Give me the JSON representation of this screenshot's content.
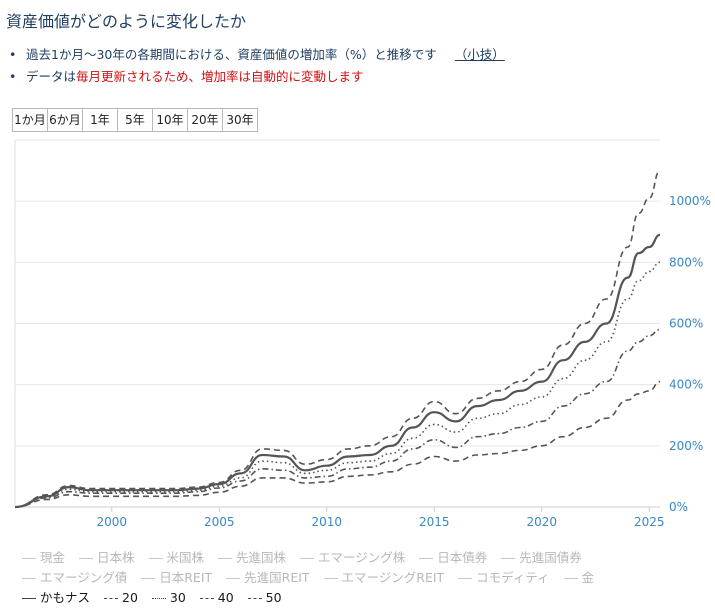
{
  "title": "資産価値がどのように変化したか",
  "bullets": {
    "line1": "過去1か月〜30年の各期間における、資産価値の増加率（%）と推移です",
    "line1_link": "（小技）",
    "line2_part1": "データは",
    "line2_part2": "毎月更新されるため、増加率は自動的に変動します"
  },
  "tabs": [
    "1か月",
    "6か月",
    "1年",
    "5年",
    "10年",
    "20年",
    "30年"
  ],
  "legend": {
    "row1": [
      "現金",
      "日本株",
      "米国株",
      "先進国株",
      "エマージング株",
      "日本債券",
      "先進国債券"
    ],
    "row2": [
      "エマージング債",
      "日本REIT",
      "先進国REIT",
      "エマージングREIT",
      "コモディティ",
      "金"
    ],
    "row3": [
      {
        "label": "かもナス",
        "style": "solid"
      },
      {
        "label": "20",
        "style": "dash"
      },
      {
        "label": "30",
        "style": "dot"
      },
      {
        "label": "40",
        "style": "dashdot"
      },
      {
        "label": "50",
        "style": "dash"
      }
    ]
  },
  "colors": {
    "axis_label": "#3a87c8",
    "line": "#555555",
    "grid": "#e6e6e6"
  },
  "chart_data": {
    "type": "line",
    "title": "",
    "xlabel": "",
    "ylabel": "",
    "x_ticks": [
      2000,
      2005,
      2010,
      2015,
      2020,
      2025
    ],
    "y_ticks": [
      0,
      200,
      400,
      600,
      800,
      1000
    ],
    "y_tick_labels": [
      "0%",
      "200%",
      "400%",
      "600%",
      "800%",
      "1000%"
    ],
    "xlim": [
      1995.5,
      2025.5
    ],
    "ylim": [
      0,
      1200
    ],
    "grid": true,
    "series": [
      {
        "name": "かもナス",
        "style": "solid",
        "x": [
          1995.5,
          1997,
          1998,
          1999,
          2000,
          2002,
          2003,
          2004,
          2005,
          2006,
          2007,
          2008,
          2009,
          2010,
          2011,
          2012,
          2013,
          2014,
          2015,
          2016,
          2017,
          2018,
          2019,
          2020,
          2021,
          2022,
          2023,
          2024,
          2024.5,
          2025,
          2025.5
        ],
        "y": [
          0,
          35,
          65,
          55,
          55,
          55,
          55,
          60,
          75,
          110,
          170,
          165,
          120,
          135,
          165,
          170,
          200,
          260,
          310,
          280,
          330,
          350,
          380,
          410,
          480,
          540,
          600,
          750,
          830,
          850,
          890
        ]
      },
      {
        "name": "20",
        "style": "dash",
        "x": [
          1995.5,
          1997,
          1998,
          1999,
          2000,
          2002,
          2003,
          2004,
          2005,
          2006,
          2007,
          2008,
          2009,
          2010,
          2011,
          2012,
          2013,
          2014,
          2015,
          2016,
          2017,
          2018,
          2019,
          2020,
          2021,
          2022,
          2023,
          2024,
          2024.5,
          2025,
          2025.5
        ],
        "y": [
          0,
          40,
          70,
          60,
          60,
          60,
          60,
          65,
          80,
          120,
          190,
          185,
          140,
          155,
          190,
          200,
          230,
          290,
          345,
          305,
          355,
          380,
          410,
          450,
          530,
          600,
          680,
          850,
          960,
          1010,
          1100
        ]
      },
      {
        "name": "30",
        "style": "dot",
        "x": [
          1995.5,
          1997,
          1998,
          1999,
          2000,
          2002,
          2003,
          2004,
          2005,
          2006,
          2007,
          2008,
          2009,
          2010,
          2011,
          2012,
          2013,
          2014,
          2015,
          2016,
          2017,
          2018,
          2019,
          2020,
          2021,
          2022,
          2023,
          2024,
          2024.5,
          2025,
          2025.5
        ],
        "y": [
          0,
          33,
          58,
          50,
          50,
          50,
          50,
          55,
          68,
          95,
          150,
          145,
          110,
          120,
          145,
          150,
          175,
          225,
          270,
          245,
          290,
          305,
          335,
          360,
          420,
          480,
          540,
          680,
          740,
          770,
          800
        ]
      },
      {
        "name": "40",
        "style": "dashdot",
        "x": [
          1995.5,
          1997,
          1998,
          1999,
          2000,
          2002,
          2003,
          2004,
          2005,
          2006,
          2007,
          2008,
          2009,
          2010,
          2011,
          2012,
          2013,
          2014,
          2015,
          2016,
          2017,
          2018,
          2019,
          2020,
          2021,
          2022,
          2023,
          2024,
          2024.5,
          2025,
          2025.5
        ],
        "y": [
          0,
          30,
          50,
          45,
          45,
          45,
          45,
          50,
          62,
          85,
          125,
          120,
          95,
          100,
          125,
          130,
          150,
          190,
          220,
          195,
          230,
          240,
          260,
          280,
          330,
          370,
          410,
          510,
          540,
          560,
          580
        ]
      },
      {
        "name": "50",
        "style": "dash",
        "x": [
          1995.5,
          1997,
          1998,
          1999,
          2000,
          2002,
          2003,
          2004,
          2005,
          2006,
          2007,
          2008,
          2009,
          2010,
          2011,
          2012,
          2013,
          2014,
          2015,
          2016,
          2017,
          2018,
          2019,
          2020,
          2021,
          2022,
          2023,
          2024,
          2024.5,
          2025,
          2025.5
        ],
        "y": [
          0,
          25,
          40,
          35,
          35,
          35,
          35,
          38,
          48,
          68,
          95,
          95,
          78,
          82,
          100,
          105,
          115,
          140,
          165,
          150,
          170,
          175,
          185,
          200,
          230,
          260,
          290,
          350,
          370,
          380,
          410
        ]
      }
    ]
  }
}
